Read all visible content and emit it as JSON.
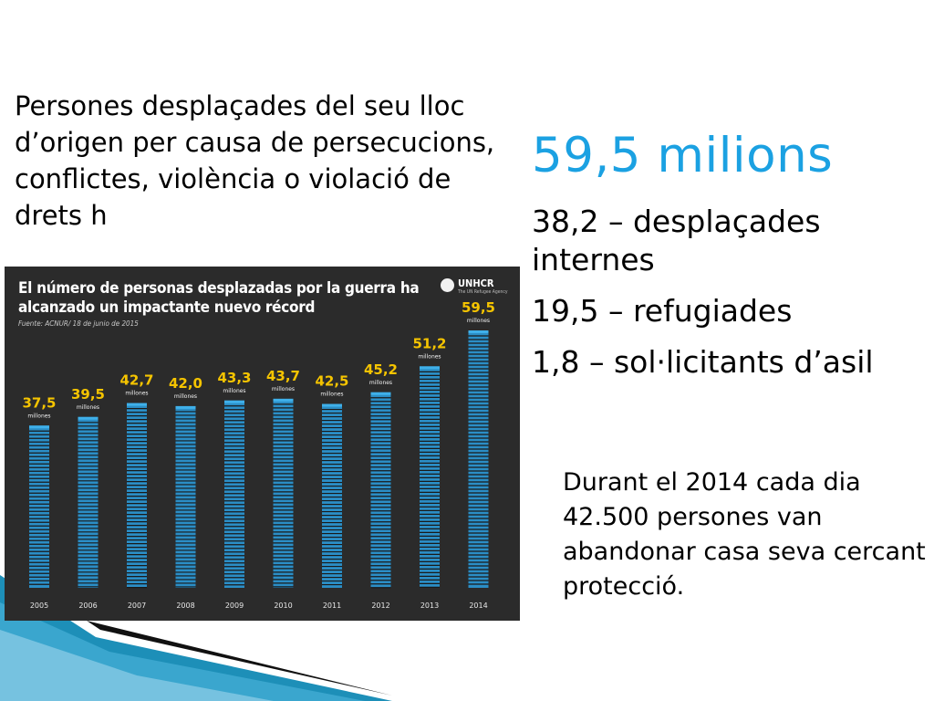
{
  "slide": {
    "intro_text": "Persones desplaçades del seu lloc d’origen per causa de persecucions, conflictes, violència o violació de drets h",
    "headline": "59,5 milions",
    "stats": [
      "38,2 – desplaçades internes",
      "19,5 – refugiades",
      "1,8 – sol·licitants d’asil"
    ],
    "note": "Durant el 2014 cada dia 42.500 persones van abandonar casa seva cercant protecció."
  },
  "colors": {
    "headline": "#1ba1e2",
    "infographic_background": "#2b2b2b",
    "bar_stripe": "#2b8ec6",
    "bar_highlight": "#3fb0ea",
    "value_label": "#f5c400"
  },
  "infographic": {
    "title": "El número de personas desplazadas por la guerra ha alcanzado un impactante nuevo récord",
    "source": "Fuente: ACNUR/ 18 de junio de 2015",
    "logo_name": "UNHCR",
    "logo_sub": "The UN Refugee Agency",
    "logo_icon": "unhcr-emblem-icon"
  },
  "chart_data": {
    "type": "bar",
    "title": "El número de personas desplazadas por la guerra ha alcanzado un impactante nuevo récord",
    "categories": [
      "2005",
      "2006",
      "2007",
      "2008",
      "2009",
      "2010",
      "2011",
      "2012",
      "2013",
      "2014"
    ],
    "values": [
      37.5,
      39.5,
      42.7,
      42.0,
      43.3,
      43.7,
      42.5,
      45.2,
      51.2,
      59.5
    ],
    "value_labels": [
      "37,5",
      "39,5",
      "42,7",
      "42,0",
      "43,3",
      "43,7",
      "42,5",
      "45,2",
      "51,2",
      "59,5"
    ],
    "unit_label": "millones",
    "xlabel": "",
    "ylabel": "",
    "grid": false,
    "legend": "none"
  }
}
